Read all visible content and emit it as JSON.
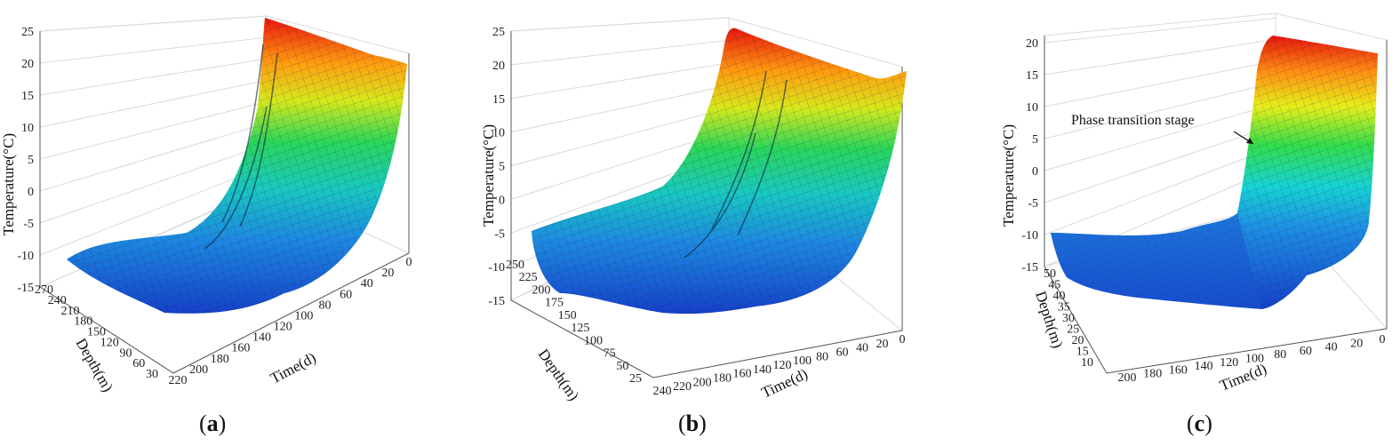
{
  "chart_data": [
    {
      "type": "surface",
      "panel": "a",
      "caption": "(a)",
      "caption_letter": "a",
      "zlabel": "Temperature(°C)",
      "xlabel": "Time(d)",
      "ylabel": "Depth(m)",
      "zlim": [
        -15,
        25
      ],
      "z_ticks": [
        "-15",
        "-10",
        "-5",
        "0",
        "5",
        "10",
        "15",
        "20",
        "25"
      ],
      "time_ticks": [
        "0",
        "20",
        "40",
        "60",
        "80",
        "100",
        "120",
        "140",
        "160",
        "180",
        "200",
        "220"
      ],
      "depth_ticks": [
        "270",
        "240",
        "210",
        "180",
        "150",
        "120",
        "90",
        "60",
        "30"
      ]
    },
    {
      "type": "surface",
      "panel": "b",
      "caption": "(b)",
      "caption_letter": "b",
      "zlabel": "Temperature(°C)",
      "xlabel": "Time(d)",
      "ylabel": "Depth(m)",
      "zlim": [
        -15,
        25
      ],
      "z_ticks": [
        "-15",
        "-10",
        "-5",
        "0",
        "5",
        "10",
        "15",
        "20",
        "25"
      ],
      "time_ticks": [
        "0",
        "20",
        "40",
        "60",
        "80",
        "100",
        "120",
        "140",
        "160",
        "180",
        "200",
        "220",
        "240"
      ],
      "depth_ticks": [
        "250",
        "225",
        "200",
        "175",
        "150",
        "125",
        "100",
        "75",
        "50",
        "25"
      ]
    },
    {
      "type": "surface",
      "panel": "c",
      "caption": "(c)",
      "caption_letter": "c",
      "zlabel": "Temperature(°C)",
      "xlabel": "Time(d)",
      "ylabel": "Depth(m)",
      "zlim": [
        -15,
        20
      ],
      "z_ticks": [
        "-15",
        "-10",
        "-5",
        "0",
        "5",
        "10",
        "15",
        "20"
      ],
      "time_ticks": [
        "0",
        "20",
        "40",
        "60",
        "80",
        "100",
        "120",
        "140",
        "160",
        "180",
        "200"
      ],
      "depth_ticks": [
        "50",
        "45",
        "40",
        "35",
        "30",
        "25",
        "20",
        "15",
        "10"
      ],
      "annotation": "Phase transition stage"
    }
  ]
}
